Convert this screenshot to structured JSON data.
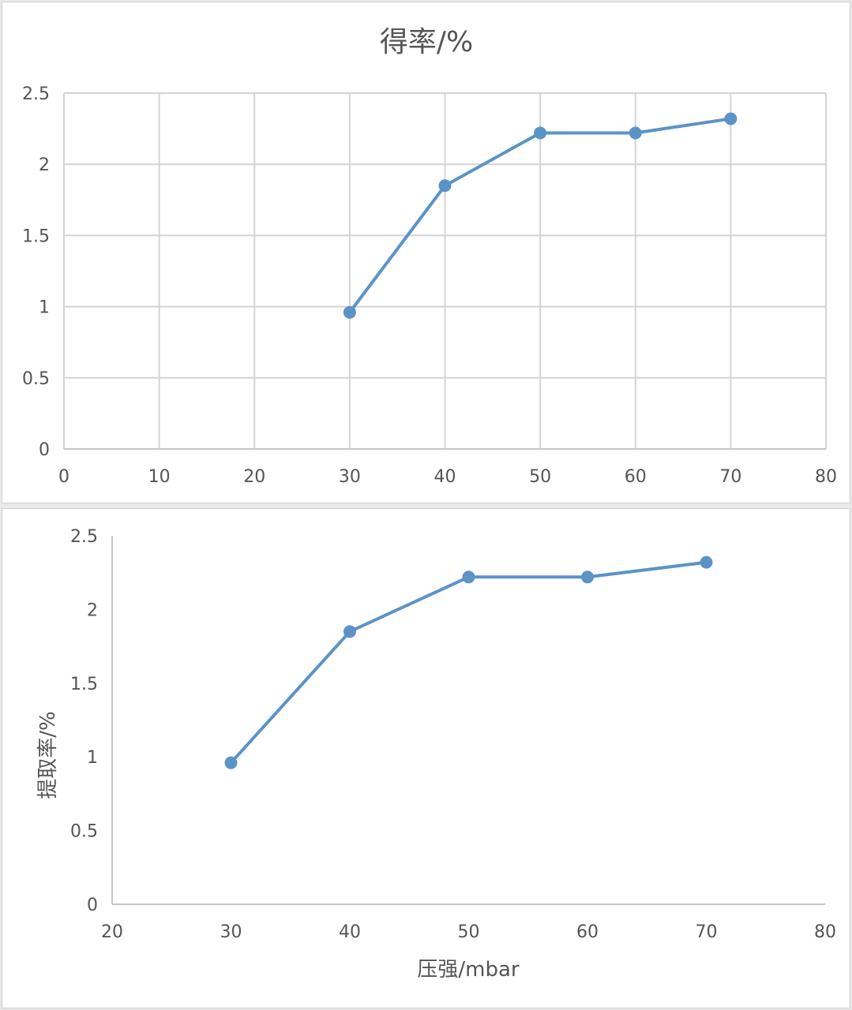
{
  "chart_data": [
    {
      "type": "line",
      "title": "得率/%",
      "xlabel": "",
      "ylabel": "",
      "x": [
        30,
        40,
        50,
        60,
        70
      ],
      "series": [
        {
          "values": [
            0.96,
            1.85,
            2.22,
            2.22,
            2.32
          ]
        }
      ],
      "xlim": [
        0,
        80
      ],
      "ylim": [
        0,
        2.5
      ],
      "xticks": [
        "0",
        "10",
        "20",
        "30",
        "40",
        "50",
        "60",
        "70",
        "80"
      ],
      "yticks": [
        "0",
        "0.5",
        "1",
        "1.5",
        "2",
        "2.5"
      ],
      "grid": true,
      "legend": "none",
      "color": "#5b93c7"
    },
    {
      "type": "line",
      "title": "",
      "xlabel": "压强/mbar",
      "ylabel": "提取率/%",
      "x": [
        30,
        40,
        50,
        60,
        70
      ],
      "series": [
        {
          "values": [
            0.96,
            1.85,
            2.22,
            2.22,
            2.32
          ]
        }
      ],
      "xlim": [
        20,
        80
      ],
      "ylim": [
        0,
        2.5
      ],
      "xticks": [
        "20",
        "30",
        "40",
        "50",
        "60",
        "70",
        "80"
      ],
      "yticks": [
        "0",
        "0.5",
        "1",
        "1.5",
        "2",
        "2.5"
      ],
      "grid": false,
      "legend": "none",
      "color": "#5b93c7"
    }
  ]
}
